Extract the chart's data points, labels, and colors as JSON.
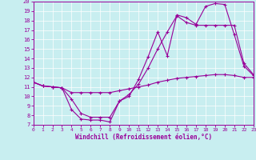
{
  "xlabel": "Windchill (Refroidissement éolien,°C)",
  "background_color": "#c8eef0",
  "line_color": "#990099",
  "grid_color": "#ffffff",
  "xlim": [
    0,
    23
  ],
  "ylim": [
    7,
    20
  ],
  "xticks": [
    0,
    1,
    2,
    3,
    4,
    5,
    6,
    7,
    8,
    9,
    10,
    11,
    12,
    13,
    14,
    15,
    16,
    17,
    18,
    19,
    20,
    21,
    22,
    23
  ],
  "yticks": [
    7,
    8,
    9,
    10,
    11,
    12,
    13,
    14,
    15,
    16,
    17,
    18,
    19,
    20
  ],
  "line1_x": [
    0,
    1,
    2,
    3,
    4,
    5,
    6,
    7,
    8,
    9,
    10,
    11,
    12,
    13,
    14,
    15,
    16,
    17,
    18,
    19,
    20,
    21,
    22,
    23
  ],
  "line1_y": [
    11.5,
    11.1,
    11.0,
    10.9,
    8.6,
    7.6,
    7.5,
    7.5,
    7.3,
    9.5,
    10.0,
    11.8,
    14.2,
    16.8,
    14.3,
    18.6,
    18.3,
    17.6,
    19.5,
    19.8,
    19.7,
    16.5,
    13.2,
    12.2
  ],
  "line2_x": [
    0,
    1,
    2,
    3,
    4,
    5,
    6,
    7,
    8,
    9,
    10,
    11,
    12,
    13,
    14,
    15,
    16,
    17,
    18,
    19,
    20,
    21,
    22,
    23
  ],
  "line2_y": [
    11.5,
    11.1,
    11.0,
    10.9,
    9.7,
    8.2,
    7.8,
    7.8,
    7.8,
    9.5,
    10.2,
    11.3,
    13.0,
    15.0,
    16.8,
    18.5,
    17.8,
    17.5,
    17.5,
    17.5,
    17.5,
    17.5,
    13.5,
    12.3
  ],
  "line3_x": [
    0,
    1,
    2,
    3,
    4,
    5,
    6,
    7,
    8,
    9,
    10,
    11,
    12,
    13,
    14,
    15,
    16,
    17,
    18,
    19,
    20,
    21,
    22,
    23
  ],
  "line3_y": [
    11.5,
    11.1,
    11.0,
    10.9,
    10.4,
    10.4,
    10.4,
    10.4,
    10.4,
    10.6,
    10.8,
    11.0,
    11.2,
    11.5,
    11.7,
    11.9,
    12.0,
    12.1,
    12.2,
    12.3,
    12.3,
    12.2,
    12.0,
    12.0
  ]
}
